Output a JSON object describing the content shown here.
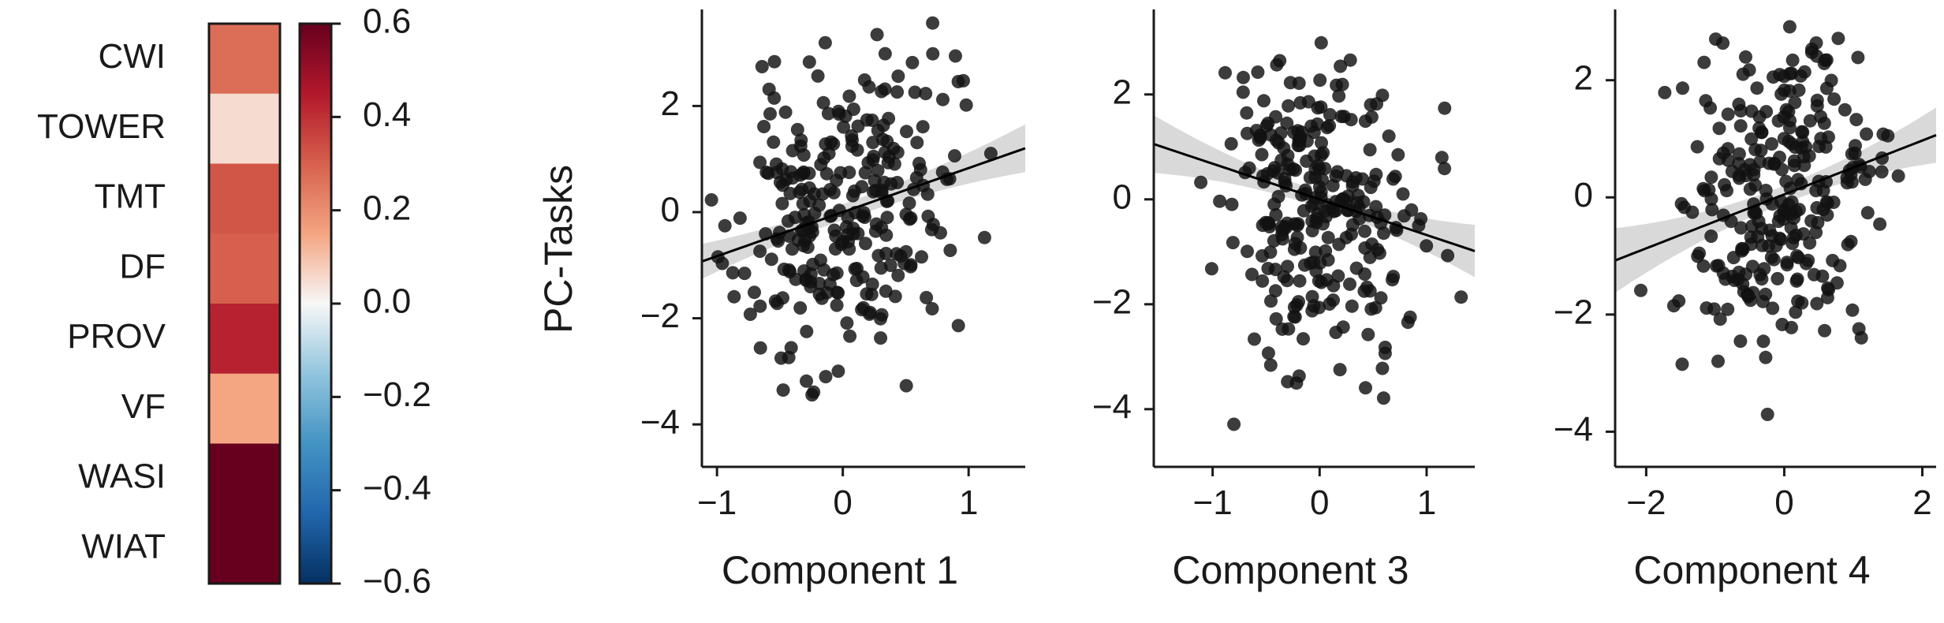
{
  "chart_data": [
    {
      "type": "heatmap",
      "rows": [
        "CWI",
        "TOWER",
        "TMT",
        "DF",
        "PROV",
        "VF",
        "WASI",
        "WIAT"
      ],
      "values": [
        0.27,
        0.05,
        0.32,
        0.3,
        0.43,
        0.15,
        0.6,
        0.6
      ],
      "colorbar": {
        "colormap": "RdBu_r",
        "vmin": -0.6,
        "vmax": 0.6,
        "ticks": [
          0.6,
          0.4,
          0.2,
          0.0,
          -0.2,
          -0.4,
          -0.6
        ],
        "tick_labels": [
          "0.6",
          "0.4",
          "0.2",
          "0.0",
          "−0.2",
          "−0.4",
          "−0.6"
        ]
      }
    },
    {
      "type": "scatter",
      "xlabel": "Component 1",
      "ylabel": "PC-Tasks",
      "xlim": [
        -1.12,
        1.45
      ],
      "ylim": [
        -4.8,
        3.7
      ],
      "xticks": [
        -1,
        0,
        1
      ],
      "xtick_labels": [
        "−1",
        "0",
        "1"
      ],
      "yticks": [
        2,
        0,
        -2,
        -4
      ],
      "ytick_labels": [
        "2",
        "0",
        "−2",
        "−4"
      ],
      "fit": {
        "slope": 0.83,
        "intercept": 0.0,
        "ci_half_center": 0.15,
        "ci_half_edge": 0.45
      },
      "seed": 11,
      "n": 280,
      "x_sd": 0.42,
      "noise_sd": 1.45
    },
    {
      "type": "scatter",
      "xlabel": "Component 3",
      "ylabel": "",
      "xlim": [
        -1.55,
        1.45
      ],
      "ylim": [
        -5.1,
        3.5
      ],
      "xticks": [
        -1,
        0,
        1
      ],
      "xtick_labels": [
        "−1",
        "0",
        "1"
      ],
      "yticks": [
        2,
        0,
        -2,
        -4
      ],
      "ytick_labels": [
        "2",
        "0",
        "−2",
        "−4"
      ],
      "fit": {
        "slope": -0.68,
        "intercept": 0.0,
        "ci_half_center": 0.15,
        "ci_half_edge": 0.55
      },
      "seed": 29,
      "n": 280,
      "x_sd": 0.45,
      "noise_sd": 1.45
    },
    {
      "type": "scatter",
      "xlabel": "Component 4",
      "ylabel": "",
      "xlim": [
        -2.45,
        2.2
      ],
      "ylim": [
        -4.6,
        3.1
      ],
      "xticks": [
        -2,
        0,
        2
      ],
      "xtick_labels": [
        "−2",
        "0",
        "2"
      ],
      "yticks": [
        2,
        0,
        -2,
        -4
      ],
      "ytick_labels": [
        "2",
        "0",
        "−2",
        "−4"
      ],
      "fit": {
        "slope": 0.46,
        "intercept": 0.05,
        "ci_half_center": 0.15,
        "ci_half_edge": 0.55
      },
      "seed": 47,
      "n": 280,
      "x_sd": 0.7,
      "noise_sd": 1.4
    }
  ]
}
